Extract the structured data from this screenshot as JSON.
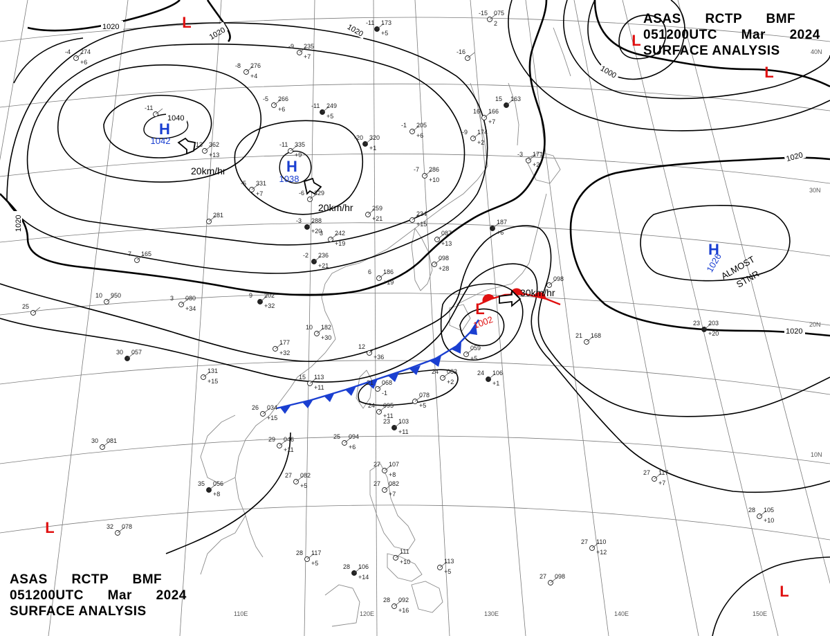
{
  "header": {
    "line1": "ASAS      RCTP      BMF",
    "line2": "051200UTC      Mar      2024",
    "line3": "SURFACE ANALYSIS"
  },
  "colors": {
    "high": "#1a3fd1",
    "low": "#e01010",
    "cold_front": "#1a3fd1",
    "warm_front": "#e01010",
    "coast": "#888888",
    "grid": "#777777"
  },
  "longitude_labels": [
    "110E",
    "120E",
    "130E",
    "140E",
    "150E"
  ],
  "latitude_labels": [
    "40N",
    "30N",
    "20N",
    "10N"
  ],
  "isobar_labels": [
    "1020",
    "1020",
    "1020",
    "1020",
    "1020",
    "1020",
    "1000",
    "1040"
  ],
  "pressure_centers": [
    {
      "type": "H",
      "value": "1042"
    },
    {
      "type": "H",
      "value": "1038"
    },
    {
      "type": "H",
      "value": "1026"
    },
    {
      "type": "L",
      "value": "1002"
    },
    {
      "type": "L",
      "value": ""
    },
    {
      "type": "L",
      "value": ""
    },
    {
      "type": "L",
      "value": ""
    },
    {
      "type": "L",
      "value": ""
    },
    {
      "type": "L",
      "value": ""
    }
  ],
  "motions": [
    "20km/hr",
    "20km/hr",
    "30km/hr"
  ],
  "annotations": [
    "ALMOST",
    "STNR"
  ],
  "stations": [
    {
      "t": "-11",
      "p": "173",
      "d": "+5"
    },
    {
      "t": "-15",
      "p": "075",
      "d": "2"
    },
    {
      "t": "-9",
      "p": "235",
      "d": "+7"
    },
    {
      "t": "-8",
      "p": "276",
      "d": "+4"
    },
    {
      "t": "-5",
      "p": "266",
      "d": "+6"
    },
    {
      "t": "-11",
      "p": "249",
      "d": "+5"
    },
    {
      "t": "-4",
      "p": "274",
      "d": "+6"
    },
    {
      "t": "-11",
      "p": "",
      "d": ""
    },
    {
      "t": "-13",
      "p": "362",
      "d": "+13"
    },
    {
      "t": "-11",
      "p": "335",
      "d": "+9"
    },
    {
      "t": "-20",
      "p": "320",
      "d": "+1"
    },
    {
      "t": "-1",
      "p": "205",
      "d": "+6"
    },
    {
      "t": "-9",
      "p": "174",
      "d": "+2"
    },
    {
      "t": "-16",
      "p": "",
      "d": ""
    },
    {
      "t": "16",
      "p": "166",
      "d": "+7"
    },
    {
      "t": "15",
      "p": "163",
      "d": ""
    },
    {
      "t": "-5",
      "p": "331",
      "d": "+7"
    },
    {
      "t": "-6",
      "p": "329",
      "d": ""
    },
    {
      "t": "-7",
      "p": "286",
      "d": "+10"
    },
    {
      "t": "-3",
      "p": "171",
      "d": "+2"
    },
    {
      "t": "-3",
      "p": "288",
      "d": "+20"
    },
    {
      "t": "",
      "p": "281",
      "d": ""
    },
    {
      "t": "",
      "p": "259",
      "d": "+21"
    },
    {
      "t": "",
      "p": "234",
      "d": "+15"
    },
    {
      "t": "3",
      "p": "242",
      "d": "+19"
    },
    {
      "t": "-2",
      "p": "236",
      "d": "+21"
    },
    {
      "t": "-7",
      "p": "165",
      "d": ""
    },
    {
      "t": "6",
      "p": "186",
      "d": "+19"
    },
    {
      "t": "10",
      "p": "950",
      "d": ""
    },
    {
      "t": "3",
      "p": "080",
      "d": "+34"
    },
    {
      "t": "9",
      "p": "202",
      "d": "+32"
    },
    {
      "t": "25",
      "p": "",
      "d": ""
    },
    {
      "t": "10",
      "p": "182",
      "d": "+30"
    },
    {
      "t": "",
      "p": "177",
      "d": "+32"
    },
    {
      "t": "12",
      "p": "",
      "d": "+36"
    },
    {
      "t": "30",
      "p": "057",
      "d": ""
    },
    {
      "t": "",
      "p": "131",
      "d": "+15"
    },
    {
      "t": "15",
      "p": "113",
      "d": "+11"
    },
    {
      "t": "21",
      "p": "068",
      "d": "-1"
    },
    {
      "t": "24",
      "p": "083",
      "d": "+2"
    },
    {
      "t": "24",
      "p": "106",
      "d": "+1"
    },
    {
      "t": "",
      "p": "059",
      "d": "+5"
    },
    {
      "t": "",
      "p": "078",
      "d": "+5"
    },
    {
      "t": "25",
      "p": "094",
      "d": "+6"
    },
    {
      "t": "24",
      "p": "095",
      "d": "+11"
    },
    {
      "t": "23",
      "p": "103",
      "d": "+11"
    },
    {
      "t": "26",
      "p": "034",
      "d": "+15"
    },
    {
      "t": "29",
      "p": "046",
      "d": "+11"
    },
    {
      "t": "30",
      "p": "081",
      "d": ""
    },
    {
      "t": "27",
      "p": "082",
      "d": "+5"
    },
    {
      "t": "35",
      "p": "056",
      "d": "+8"
    },
    {
      "t": "27",
      "p": "107",
      "d": "+8"
    },
    {
      "t": "27",
      "p": "082",
      "d": "+7"
    },
    {
      "t": "27",
      "p": "117",
      "d": "+7"
    },
    {
      "t": "21",
      "p": "168",
      "d": ""
    },
    {
      "t": "23",
      "p": "203",
      "d": "+20"
    },
    {
      "t": "28",
      "p": "105",
      "d": "+10"
    },
    {
      "t": "27",
      "p": "110",
      "d": "+12"
    },
    {
      "t": "32",
      "p": "078",
      "d": ""
    },
    {
      "t": "28",
      "p": "117",
      "d": "+5"
    },
    {
      "t": "28",
      "p": "106",
      "d": "+14"
    },
    {
      "t": "",
      "p": "111",
      "d": "+10"
    },
    {
      "t": "",
      "p": "113",
      "d": "+5"
    },
    {
      "t": "27",
      "p": "098",
      "d": ""
    },
    {
      "t": "28",
      "p": "092",
      "d": "+16"
    },
    {
      "t": "",
      "p": "187",
      "d": "+6"
    },
    {
      "t": "",
      "p": "087",
      "d": "+13"
    },
    {
      "t": "",
      "p": "098",
      "d": "+28"
    },
    {
      "t": "",
      "p": "098",
      "d": ""
    }
  ]
}
